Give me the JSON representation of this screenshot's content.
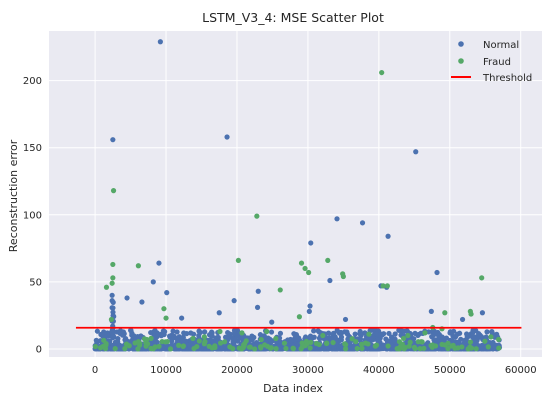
{
  "chart_data": {
    "type": "scatter",
    "title": "LSTM_V3_4: MSE Scatter Plot",
    "xlabel": "Data index",
    "ylabel": "Reconstruction error",
    "xlim": [
      -6500,
      63000
    ],
    "ylim": [
      -6,
      237
    ],
    "xticks": [
      0,
      10000,
      20000,
      30000,
      40000,
      50000,
      60000
    ],
    "yticks": [
      0,
      50,
      100,
      150,
      200
    ],
    "grid": true,
    "background": "#EAEAF2",
    "legend": {
      "placement": "top-right",
      "entries": [
        "Normal",
        "Fraud",
        "Threshold"
      ]
    },
    "colors": {
      "normal": "#4C72B0",
      "fraud": "#55A868",
      "threshold": "#FF0000"
    },
    "threshold": {
      "name": "Threshold",
      "y": 15.8,
      "x_range": [
        -2700,
        60100
      ]
    },
    "series": [
      {
        "name": "Normal",
        "x_range": [
          0,
          57000
        ],
        "outliers": [
          [
            9200,
            229
          ],
          [
            2500,
            156
          ],
          [
            18600,
            158
          ],
          [
            45200,
            147
          ],
          [
            34100,
            97
          ],
          [
            37700,
            94
          ],
          [
            41300,
            84
          ],
          [
            30400,
            79
          ],
          [
            8200,
            50
          ],
          [
            4500,
            38
          ],
          [
            9000,
            64
          ],
          [
            48200,
            57
          ],
          [
            33100,
            51
          ],
          [
            40300,
            47
          ],
          [
            41100,
            46
          ],
          [
            23000,
            43
          ],
          [
            22900,
            31
          ],
          [
            2400,
            40
          ],
          [
            2400,
            36
          ],
          [
            6600,
            35
          ],
          [
            19600,
            36
          ],
          [
            30300,
            32
          ],
          [
            30200,
            28
          ],
          [
            54600,
            27
          ],
          [
            47400,
            28
          ],
          [
            10100,
            42
          ],
          [
            17500,
            27
          ],
          [
            12200,
            23
          ],
          [
            24900,
            20
          ],
          [
            35300,
            22
          ],
          [
            51800,
            22
          ]
        ]
      },
      {
        "name": "Fraud",
        "outliers": [
          [
            40400,
            206
          ],
          [
            2600,
            118
          ],
          [
            22800,
            99
          ],
          [
            20200,
            66
          ],
          [
            2500,
            63
          ],
          [
            29100,
            64
          ],
          [
            29600,
            60
          ],
          [
            30100,
            57
          ],
          [
            32800,
            66
          ],
          [
            34900,
            56
          ],
          [
            35000,
            54
          ],
          [
            54500,
            53
          ],
          [
            2500,
            53
          ],
          [
            2400,
            49
          ],
          [
            1600,
            46
          ],
          [
            6100,
            62
          ],
          [
            26100,
            44
          ],
          [
            40600,
            47
          ],
          [
            41200,
            47
          ],
          [
            9700,
            30
          ],
          [
            2300,
            22
          ],
          [
            10000,
            23
          ],
          [
            17600,
            13
          ],
          [
            24200,
            13
          ],
          [
            48900,
            15
          ],
          [
            49300,
            27
          ],
          [
            52900,
            28
          ],
          [
            53000,
            26
          ],
          [
            47600,
            16
          ],
          [
            46500,
            12
          ],
          [
            32100,
            10
          ],
          [
            15400,
            9
          ],
          [
            20700,
            12
          ],
          [
            38600,
            11
          ],
          [
            44100,
            10
          ],
          [
            55800,
            9
          ],
          [
            28800,
            24
          ]
        ]
      }
    ]
  }
}
